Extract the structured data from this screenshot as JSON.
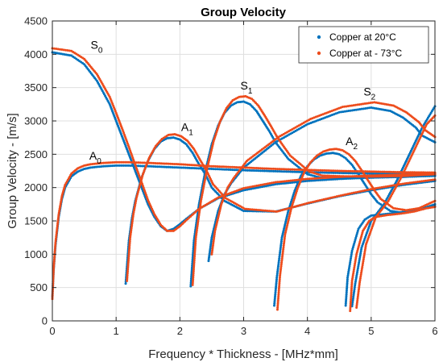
{
  "chart_data": {
    "type": "scatter",
    "title": "Group Velocity",
    "xlabel": "Frequency * Thickness - [MHz*mm]",
    "ylabel": "Group Velocity - [m/s]",
    "xlim": [
      0,
      6
    ],
    "ylim": [
      0,
      4500
    ],
    "xticks": [
      0,
      1,
      2,
      3,
      4,
      5,
      6
    ],
    "yticks": [
      0,
      500,
      1000,
      1500,
      2000,
      2500,
      3000,
      3500,
      4000,
      4500
    ],
    "grid": true,
    "legend_position": "top-right",
    "mode_labels": [
      {
        "base": "S",
        "sub": "0"
      },
      {
        "base": "A",
        "sub": "0"
      },
      {
        "base": "A",
        "sub": "1"
      },
      {
        "base": "S",
        "sub": "1"
      },
      {
        "base": "A",
        "sub": "2"
      },
      {
        "base": "S",
        "sub": "2"
      }
    ],
    "series": [
      {
        "name": "Copper at 20°C",
        "color": "#0072BD",
        "modes": [
          {
            "x": [
              0.0,
              0.3,
              0.5,
              0.7,
              0.9,
              1.0,
              1.1,
              1.2,
              1.3,
              1.4,
              1.5,
              1.6,
              1.7,
              1.8,
              1.9,
              2.0,
              2.1,
              2.3,
              2.6,
              3.0,
              3.5,
              4.0,
              4.5,
              5.0,
              5.5,
              6.0
            ],
            "y": [
              4030,
              3980,
              3850,
              3600,
              3250,
              3000,
              2750,
              2500,
              2250,
              2000,
              1750,
              1560,
              1420,
              1350,
              1380,
              1450,
              1530,
              1680,
              1840,
              1960,
              2050,
              2100,
              2130,
              2150,
              2165,
              2175
            ]
          },
          {
            "x": [
              0.0,
              0.02,
              0.05,
              0.1,
              0.15,
              0.2,
              0.3,
              0.4,
              0.5,
              0.6,
              0.8,
              1.0,
              1.2,
              1.5,
              2.0,
              2.5,
              3.0,
              3.5,
              4.0,
              4.5,
              5.0,
              5.5,
              6.0
            ],
            "y": [
              360,
              760,
              1140,
              1560,
              1830,
              2000,
              2170,
              2240,
              2280,
              2300,
              2320,
              2330,
              2330,
              2320,
              2300,
              2280,
              2260,
              2245,
              2230,
              2220,
              2210,
              2205,
              2200
            ]
          },
          {
            "x": [
              1.15,
              1.2,
              1.25,
              1.3,
              1.4,
              1.5,
              1.6,
              1.7,
              1.8,
              1.9,
              2.0,
              2.1,
              2.2,
              2.3,
              2.4,
              2.5,
              2.7,
              3.0,
              3.5,
              4.0,
              4.5,
              5.0,
              5.5,
              6.0
            ],
            "y": [
              560,
              1200,
              1550,
              1800,
              2150,
              2400,
              2580,
              2690,
              2740,
              2750,
              2720,
              2650,
              2520,
              2350,
              2200,
              2000,
              1800,
              1650,
              1640,
              1760,
              1870,
              1960,
              2040,
              2100
            ]
          },
          {
            "x": [
              2.17,
              2.22,
              2.3,
              2.4,
              2.5,
              2.6,
              2.7,
              2.8,
              2.9,
              3.0,
              3.1,
              3.2,
              3.3,
              3.4,
              3.5,
              3.7,
              4.0,
              4.2,
              4.5,
              4.8,
              5.0,
              5.5,
              6.0
            ],
            "y": [
              520,
              1200,
              1750,
              2250,
              2650,
              2930,
              3120,
              3230,
              3280,
              3290,
              3250,
              3150,
              3000,
              2850,
              2680,
              2430,
              2200,
              2150,
              2150,
              2150,
              2150,
              2160,
              2180
            ]
          },
          {
            "x": [
              2.45,
              2.5,
              2.6,
              2.7,
              2.8,
              3.0,
              3.5,
              4.0,
              4.5,
              5.0,
              5.3,
              5.5,
              5.7,
              5.8,
              6.0
            ],
            "y": [
              900,
              1250,
              1650,
              1900,
              2060,
              2300,
              2680,
              2950,
              3130,
              3200,
              3150,
              3050,
              2900,
              2780,
              2680
            ]
          },
          {
            "x": [
              3.48,
              3.52,
              3.6,
              3.7,
              3.8,
              3.9,
              4.0,
              4.1,
              4.2,
              4.3,
              4.4,
              4.5,
              4.6,
              4.7,
              4.8,
              4.9,
              5.0,
              5.1,
              5.3,
              5.5,
              5.7,
              6.0
            ],
            "y": [
              230,
              650,
              1250,
              1650,
              1950,
              2180,
              2320,
              2420,
              2480,
              2510,
              2520,
              2500,
              2440,
              2340,
              2200,
              2050,
              1900,
              1780,
              1650,
              1620,
              1650,
              1750
            ]
          },
          {
            "x": [
              4.6,
              4.63,
              4.7,
              4.8,
              4.9,
              5.0,
              5.2,
              5.4,
              5.6,
              5.8,
              6.0
            ],
            "y": [
              230,
              650,
              1050,
              1380,
              1520,
              1580,
              1600,
              1620,
              1650,
              1700,
              1720
            ]
          },
          {
            "x": [
              4.7,
              4.75,
              4.85,
              5.0,
              5.2,
              5.4,
              5.6,
              5.8,
              6.0
            ],
            "y": [
              220,
              560,
              1100,
              1500,
              1750,
              2100,
              2500,
              2900,
              3220
            ]
          }
        ]
      },
      {
        "name": "Copper at - 73°C",
        "color": "#ED4C1C",
        "modes": [
          {
            "x": [
              0.0,
              0.3,
              0.5,
              0.7,
              0.9,
              1.0,
              1.1,
              1.2,
              1.3,
              1.4,
              1.5,
              1.6,
              1.7,
              1.8,
              1.9,
              2.0,
              2.1,
              2.3,
              2.6,
              3.0,
              3.5,
              4.0,
              4.5,
              5.0,
              5.5,
              6.0
            ],
            "y": [
              4090,
              4050,
              3930,
              3700,
              3360,
              3120,
              2870,
              2610,
              2340,
              2080,
              1810,
              1600,
              1440,
              1350,
              1350,
              1420,
              1510,
              1680,
              1850,
              1990,
              2080,
              2130,
              2160,
              2180,
              2195,
              2205
            ]
          },
          {
            "x": [
              0.0,
              0.02,
              0.05,
              0.1,
              0.15,
              0.2,
              0.3,
              0.4,
              0.5,
              0.6,
              0.8,
              1.0,
              1.2,
              1.5,
              2.0,
              2.5,
              3.0,
              3.5,
              4.0,
              4.5,
              5.0,
              5.5,
              6.0
            ],
            "y": [
              330,
              780,
              1180,
              1600,
              1870,
              2040,
              2210,
              2290,
              2330,
              2350,
              2370,
              2380,
              2380,
              2370,
              2350,
              2320,
              2300,
              2280,
              2265,
              2250,
              2240,
              2230,
              2225
            ]
          },
          {
            "x": [
              1.17,
              1.22,
              1.27,
              1.32,
              1.42,
              1.52,
              1.62,
              1.72,
              1.82,
              1.92,
              2.02,
              2.12,
              2.22,
              2.32,
              2.42,
              2.52,
              2.72,
              3.02,
              3.52,
              4.02,
              4.52,
              5.02,
              5.52,
              6.0
            ],
            "y": [
              600,
              1250,
              1600,
              1850,
              2200,
              2450,
              2620,
              2730,
              2790,
              2800,
              2770,
              2700,
              2580,
              2410,
              2250,
              2050,
              1840,
              1680,
              1640,
              1770,
              1880,
              1980,
              2060,
              2120
            ]
          },
          {
            "x": [
              2.2,
              2.25,
              2.33,
              2.43,
              2.53,
              2.63,
              2.73,
              2.83,
              2.93,
              3.03,
              3.13,
              3.23,
              3.33,
              3.43,
              3.53,
              3.73,
              4.03,
              4.23,
              4.53,
              4.83,
              5.03,
              5.53,
              6.0
            ],
            "y": [
              540,
              1250,
              1800,
              2300,
              2700,
              2990,
              3190,
              3310,
              3360,
              3370,
              3330,
              3230,
              3080,
              2920,
              2750,
              2480,
              2240,
              2180,
              2170,
              2165,
              2165,
              2175,
              2200
            ]
          },
          {
            "x": [
              2.5,
              2.55,
              2.65,
              2.75,
              2.85,
              3.05,
              3.55,
              4.05,
              4.55,
              5.05,
              5.35,
              5.55,
              5.75,
              5.85,
              6.0
            ],
            "y": [
              1000,
              1350,
              1750,
              2000,
              2150,
              2400,
              2760,
              3030,
              3210,
              3280,
              3230,
              3130,
              2980,
              2860,
              2760
            ]
          },
          {
            "x": [
              3.53,
              3.57,
              3.65,
              3.75,
              3.85,
              3.95,
              4.05,
              4.15,
              4.25,
              4.35,
              4.45,
              4.55,
              4.65,
              4.75,
              4.85,
              4.95,
              5.05,
              5.15,
              5.35,
              5.55,
              5.75,
              6.0
            ],
            "y": [
              170,
              680,
              1300,
              1700,
              2000,
              2230,
              2380,
              2480,
              2540,
              2570,
              2580,
              2560,
              2500,
              2400,
              2260,
              2110,
              1960,
              1830,
              1690,
              1660,
              1690,
              1800
            ]
          },
          {
            "x": [
              4.67,
              4.7,
              4.77,
              4.87,
              4.97,
              5.07,
              5.27,
              5.47,
              5.67,
              5.87,
              6.0
            ],
            "y": [
              150,
              600,
              1000,
              1350,
              1500,
              1560,
              1590,
              1610,
              1640,
              1690,
              1710
            ]
          },
          {
            "x": [
              4.77,
              4.82,
              4.92,
              5.07,
              5.27,
              5.47,
              5.67,
              5.87,
              6.0
            ],
            "y": [
              200,
              580,
              1150,
              1550,
              1800,
              2150,
              2550,
              2950,
              3080
            ]
          }
        ]
      }
    ]
  }
}
